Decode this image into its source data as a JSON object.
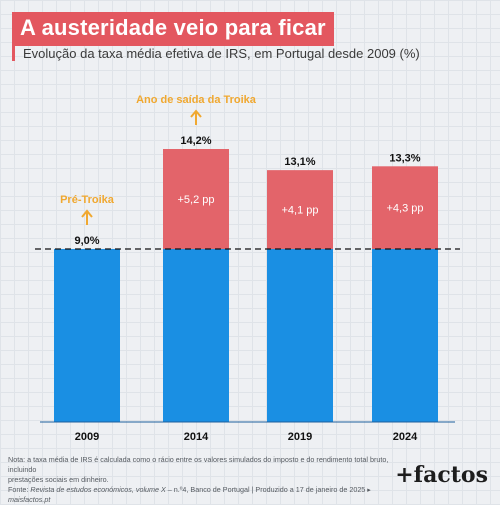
{
  "header": {
    "title": "A austeridade veio para ficar",
    "subtitle": "Evolução da taxa média efetiva de IRS, em Portugal desde 2009 (%)"
  },
  "chart_data": {
    "type": "bar",
    "stacked": true,
    "categories": [
      "2009",
      "2014",
      "2019",
      "2024"
    ],
    "totals": [
      9.0,
      14.2,
      13.1,
      13.3
    ],
    "total_labels": [
      "9,0%",
      "14,2%",
      "13,1%",
      "13,3%"
    ],
    "series": [
      {
        "values": [
          9.0,
          9.0,
          9.0,
          9.0
        ],
        "color": "#1a8fe3"
      },
      {
        "values": [
          0,
          5.2,
          4.1,
          4.3
        ],
        "color": "#e3646a",
        "labels": [
          "",
          "+5,2 pp",
          "+4,1 pp",
          "+4,3 pp"
        ]
      }
    ],
    "reference_line": {
      "value": 9.0,
      "style": "dashed"
    },
    "annotations": [
      {
        "category": "2009",
        "text": "Pré-Troika",
        "color": "#f0a830"
      },
      {
        "category": "2014",
        "text": "Ano de saída da Troika",
        "color": "#f0a830"
      }
    ],
    "ylim": [
      0,
      14.2
    ],
    "grid": false,
    "legend": "none"
  },
  "footer": {
    "note_line1": "Nota: a taxa média de IRS é calculada como o rácio entre os valores simulados do imposto e do rendimento total bruto, incluindo",
    "note_line2": "prestações sociais em dinheiro.",
    "source_prefix": "Fonte: ",
    "source_title": "Revista de estudos económicos, volume X",
    "source_rest": " – n.º4, Banco de Portugal  |  Produzido a 17 de janeiro de 2025 ▸ ",
    "source_site": "maisfactos.pt",
    "brand": "+factos"
  }
}
